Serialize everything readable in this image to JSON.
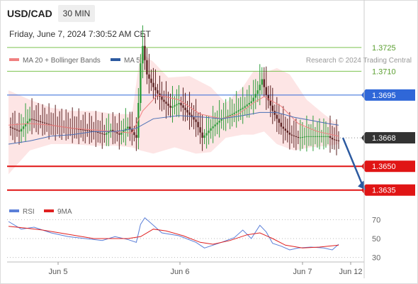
{
  "header": {
    "symbol": "USD/CAD",
    "timeframe": "30 MIN",
    "timestamp": "Friday, June 7, 2024 7:30:52 AM CET",
    "credit": "Research © 2024 Trading Central"
  },
  "legend": {
    "bollinger": {
      "label": "MA 20 + Bollinger Bands",
      "color": "#f08080"
    },
    "ma50": {
      "label": "MA 50",
      "color": "#2c5aa0"
    },
    "rsi": {
      "label": "RSI",
      "color": "#5b7fd8"
    },
    "rsi_ma": {
      "label": "9MA",
      "color": "#e02020"
    }
  },
  "chart_data": [
    {
      "type": "line",
      "title": "USD/CAD",
      "y_scale": "linear",
      "ylim": [
        1.3625,
        1.3755
      ],
      "x_ticks": [
        "Jun 5",
        "Jun 6",
        "Jun 7",
        "Jun 12"
      ],
      "levels": [
        {
          "value": 1.3725,
          "label": "1.3725",
          "color": "#7cc24f",
          "style": "resistance"
        },
        {
          "value": 1.371,
          "label": "1.3710",
          "color": "#7cc24f",
          "style": "resistance"
        },
        {
          "value": 1.3695,
          "label": "1.3695",
          "color": "#2f67d8",
          "style": "pivot"
        },
        {
          "value": 1.3668,
          "label": "1.3668",
          "color": "#333333",
          "style": "last"
        },
        {
          "value": 1.365,
          "label": "1.3650",
          "color": "#e01515",
          "style": "support"
        },
        {
          "value": 1.3635,
          "label": "1.3635",
          "color": "#e01515",
          "style": "support"
        }
      ],
      "path_points": [
        [
          0,
          1.3675
        ],
        [
          5,
          1.3672
        ],
        [
          10,
          1.368
        ],
        [
          15,
          1.3678
        ],
        [
          20,
          1.3676
        ],
        [
          25,
          1.3675
        ],
        [
          30,
          1.3674
        ],
        [
          35,
          1.3673
        ],
        [
          40,
          1.3672
        ],
        [
          45,
          1.367
        ],
        [
          48,
          1.3673
        ],
        [
          52,
          1.367
        ],
        [
          56,
          1.3675
        ],
        [
          60,
          1.3668
        ],
        [
          61,
          1.369
        ],
        [
          62,
          1.3715
        ],
        [
          63,
          1.3726
        ],
        [
          65,
          1.3708
        ],
        [
          68,
          1.37
        ],
        [
          72,
          1.3692
        ],
        [
          76,
          1.3687
        ],
        [
          80,
          1.369
        ],
        [
          84,
          1.3684
        ],
        [
          88,
          1.3678
        ],
        [
          91,
          1.3668
        ],
        [
          95,
          1.3674
        ],
        [
          100,
          1.368
        ],
        [
          105,
          1.3683
        ],
        [
          110,
          1.3687
        ],
        [
          114,
          1.3691
        ],
        [
          117,
          1.3698
        ],
        [
          119,
          1.3705
        ],
        [
          121,
          1.3695
        ],
        [
          124,
          1.3685
        ],
        [
          128,
          1.3675
        ],
        [
          132,
          1.367
        ],
        [
          136,
          1.3668
        ],
        [
          140,
          1.3669
        ],
        [
          145,
          1.3669
        ],
        [
          150,
          1.3669
        ],
        [
          152,
          1.3667
        ],
        [
          155,
          1.3666
        ]
      ],
      "ma20": [
        [
          0,
          1.3676
        ],
        [
          10,
          1.3677
        ],
        [
          20,
          1.3676
        ],
        [
          30,
          1.3674
        ],
        [
          40,
          1.3673
        ],
        [
          50,
          1.3672
        ],
        [
          58,
          1.3671
        ],
        [
          63,
          1.3685
        ],
        [
          70,
          1.3695
        ],
        [
          80,
          1.3692
        ],
        [
          90,
          1.3683
        ],
        [
          100,
          1.368
        ],
        [
          108,
          1.3683
        ],
        [
          115,
          1.369
        ],
        [
          120,
          1.3694
        ],
        [
          128,
          1.3688
        ],
        [
          136,
          1.3677
        ],
        [
          145,
          1.3672
        ],
        [
          155,
          1.3669
        ]
      ],
      "bb_upper": [
        [
          0,
          1.3698
        ],
        [
          10,
          1.3692
        ],
        [
          20,
          1.3687
        ],
        [
          30,
          1.3685
        ],
        [
          40,
          1.3685
        ],
        [
          50,
          1.3683
        ],
        [
          58,
          1.3683
        ],
        [
          62,
          1.3722
        ],
        [
          68,
          1.3716
        ],
        [
          75,
          1.3706
        ],
        [
          85,
          1.3707
        ],
        [
          95,
          1.37
        ],
        [
          102,
          1.369
        ],
        [
          110,
          1.37
        ],
        [
          115,
          1.371
        ],
        [
          120,
          1.3709
        ],
        [
          126,
          1.3712
        ],
        [
          132,
          1.3708
        ],
        [
          140,
          1.3692
        ],
        [
          148,
          1.3683
        ],
        [
          155,
          1.3676
        ]
      ],
      "bb_lower": [
        [
          0,
          1.3645
        ],
        [
          10,
          1.366
        ],
        [
          20,
          1.3664
        ],
        [
          30,
          1.3664
        ],
        [
          40,
          1.3663
        ],
        [
          50,
          1.3663
        ],
        [
          58,
          1.3662
        ],
        [
          62,
          1.366
        ],
        [
          68,
          1.3658
        ],
        [
          78,
          1.3662
        ],
        [
          88,
          1.3658
        ],
        [
          95,
          1.3659
        ],
        [
          102,
          1.3668
        ],
        [
          110,
          1.367
        ],
        [
          115,
          1.367
        ],
        [
          120,
          1.3672
        ],
        [
          126,
          1.3664
        ],
        [
          134,
          1.366
        ],
        [
          142,
          1.3662
        ],
        [
          150,
          1.3663
        ],
        [
          155,
          1.3664
        ]
      ],
      "ma50": [
        [
          0,
          1.3664
        ],
        [
          10,
          1.3666
        ],
        [
          20,
          1.3669
        ],
        [
          30,
          1.367
        ],
        [
          40,
          1.3672
        ],
        [
          50,
          1.3672
        ],
        [
          60,
          1.3674
        ],
        [
          68,
          1.368
        ],
        [
          80,
          1.3682
        ],
        [
          92,
          1.3681
        ],
        [
          100,
          1.368
        ],
        [
          110,
          1.3682
        ],
        [
          118,
          1.3684
        ],
        [
          126,
          1.3684
        ],
        [
          134,
          1.3681
        ],
        [
          142,
          1.3679
        ],
        [
          150,
          1.3677
        ],
        [
          155,
          1.3676
        ]
      ],
      "forecast": [
        [
          157,
          1.3668
        ],
        [
          167,
          1.3636
        ]
      ]
    },
    {
      "type": "line",
      "title": "RSI",
      "ylim": [
        20,
        80
      ],
      "y_ticks": [
        70,
        50,
        30
      ],
      "rsi": [
        [
          0,
          68
        ],
        [
          6,
          60
        ],
        [
          12,
          62
        ],
        [
          20,
          56
        ],
        [
          28,
          52
        ],
        [
          36,
          50
        ],
        [
          44,
          48
        ],
        [
          50,
          52
        ],
        [
          56,
          49
        ],
        [
          60,
          46
        ],
        [
          62,
          65
        ],
        [
          64,
          72
        ],
        [
          68,
          64
        ],
        [
          72,
          56
        ],
        [
          80,
          53
        ],
        [
          88,
          46
        ],
        [
          92,
          40
        ],
        [
          100,
          46
        ],
        [
          106,
          51
        ],
        [
          110,
          59
        ],
        [
          114,
          50
        ],
        [
          118,
          64
        ],
        [
          121,
          57
        ],
        [
          124,
          45
        ],
        [
          128,
          42
        ],
        [
          132,
          38
        ],
        [
          136,
          40
        ],
        [
          142,
          41
        ],
        [
          148,
          40
        ],
        [
          152,
          38
        ],
        [
          155,
          44
        ]
      ],
      "rsi_ma": [
        [
          0,
          63
        ],
        [
          8,
          61
        ],
        [
          16,
          59
        ],
        [
          24,
          56
        ],
        [
          32,
          53
        ],
        [
          40,
          50
        ],
        [
          48,
          50
        ],
        [
          56,
          50
        ],
        [
          62,
          52
        ],
        [
          68,
          60
        ],
        [
          74,
          58
        ],
        [
          82,
          53
        ],
        [
          90,
          46
        ],
        [
          96,
          44
        ],
        [
          104,
          48
        ],
        [
          112,
          54
        ],
        [
          118,
          56
        ],
        [
          124,
          50
        ],
        [
          130,
          43
        ],
        [
          138,
          40
        ],
        [
          146,
          41
        ],
        [
          155,
          43
        ]
      ]
    }
  ]
}
